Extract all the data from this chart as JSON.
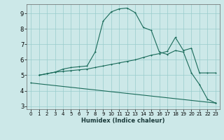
{
  "xlabel": "Humidex (Indice chaleur)",
  "bg_color": "#cce8e8",
  "grid_color": "#99cccc",
  "line_color": "#1a6b5a",
  "xlim": [
    -0.5,
    23.5
  ],
  "ylim": [
    2.8,
    9.6
  ],
  "xticks": [
    0,
    1,
    2,
    3,
    4,
    5,
    6,
    7,
    8,
    9,
    10,
    11,
    12,
    13,
    14,
    15,
    16,
    17,
    18,
    19,
    20,
    21,
    22,
    23
  ],
  "yticks": [
    3,
    4,
    5,
    6,
    7,
    8,
    9
  ],
  "curve1_x": [
    1,
    2,
    3,
    4,
    5,
    6,
    7,
    8,
    9,
    10,
    11,
    12,
    13,
    14,
    15,
    16,
    17,
    18,
    19,
    20,
    21,
    22,
    23
  ],
  "curve1_y": [
    5.0,
    5.1,
    5.2,
    5.4,
    5.5,
    5.55,
    5.6,
    6.5,
    8.5,
    9.1,
    9.3,
    9.35,
    9.05,
    8.1,
    7.9,
    6.5,
    6.35,
    6.6,
    6.5,
    5.15,
    4.4,
    3.45,
    3.2
  ],
  "curve2_x": [
    1,
    2,
    3,
    4,
    5,
    6,
    7,
    8,
    9,
    10,
    11,
    12,
    13,
    14,
    15,
    16,
    17,
    18,
    19,
    20,
    21,
    22,
    23
  ],
  "curve2_y": [
    5.0,
    5.1,
    5.2,
    5.25,
    5.3,
    5.35,
    5.4,
    5.5,
    5.6,
    5.7,
    5.8,
    5.9,
    6.0,
    6.15,
    6.3,
    6.4,
    6.55,
    7.45,
    6.6,
    6.75,
    5.15,
    5.15,
    5.15
  ],
  "curve3_x": [
    0,
    23
  ],
  "curve3_y": [
    4.5,
    3.2
  ]
}
